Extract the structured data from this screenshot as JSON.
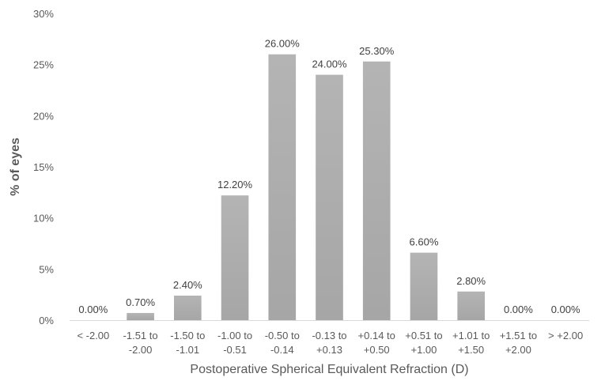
{
  "chart_data": {
    "type": "bar",
    "title": "",
    "xlabel": "Postoperative Spherical Equivalent Refraction (D)",
    "ylabel": "% of eyes",
    "ylim": [
      0,
      30
    ],
    "grid": false,
    "legend": "none",
    "bar_color": "#a6a6a6",
    "y_ticks": [
      "0%",
      "5%",
      "10%",
      "15%",
      "20%",
      "25%",
      "30%"
    ],
    "categories": [
      [
        "< -2.00"
      ],
      [
        "-1.51 to",
        "-2.00"
      ],
      [
        "-1.50 to",
        "-1.01"
      ],
      [
        "-1.00 to",
        "-0.51"
      ],
      [
        "-0.50 to",
        "-0.14"
      ],
      [
        "-0.13 to",
        "+0.13"
      ],
      [
        "+0.14 to",
        "+0.50"
      ],
      [
        "+0.51 to",
        "+1.00"
      ],
      [
        "+1.01 to",
        "+1.50"
      ],
      [
        "+1.51 to",
        "+2.00"
      ],
      [
        "> +2.00"
      ]
    ],
    "values": [
      0.0,
      0.7,
      2.4,
      12.2,
      26.0,
      24.0,
      25.3,
      6.6,
      2.8,
      0.0,
      0.0
    ],
    "data_labels": [
      "0.00%",
      "0.70%",
      "2.40%",
      "12.20%",
      "26.00%",
      "24.00%",
      "25.30%",
      "6.60%",
      "2.80%",
      "0.00%",
      "0.00%"
    ]
  }
}
